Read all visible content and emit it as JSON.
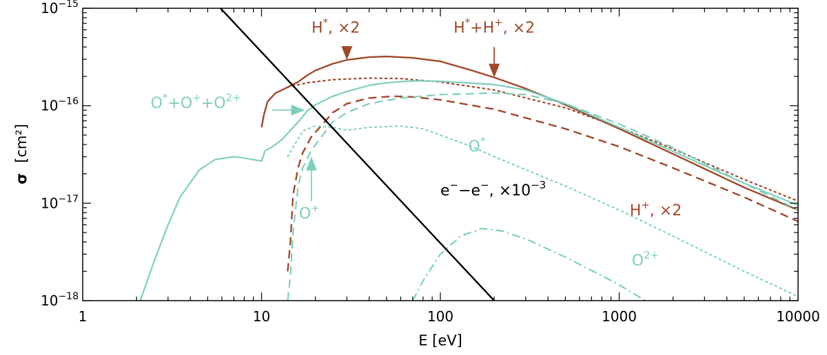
{
  "chart_data": {
    "type": "line",
    "xlabel": "E [eV]",
    "ylabel_symbol": "σ",
    "ylabel_unit": "[cm²]",
    "x_scale": "log",
    "y_scale": "log",
    "xlim": [
      1,
      10000
    ],
    "ylim": [
      1e-18,
      1e-15
    ],
    "x_ticks": [
      {
        "value": 1,
        "label": "1"
      },
      {
        "value": 10,
        "label": "10"
      },
      {
        "value": 100,
        "label": "100"
      },
      {
        "value": 1000,
        "label": "1000"
      },
      {
        "value": 10000,
        "label": "10000"
      }
    ],
    "y_ticks": [
      {
        "value": 1e-15,
        "base": "10",
        "exp": "−15"
      },
      {
        "value": 1e-16,
        "base": "10",
        "exp": "−16"
      },
      {
        "value": 1e-17,
        "base": "10",
        "exp": "−17"
      },
      {
        "value": 1e-18,
        "base": "10",
        "exp": "−18"
      }
    ],
    "colors": {
      "h": "#a0482a",
      "o": "#7dcfbc",
      "e": "#000000"
    },
    "series": [
      {
        "key": "h_total",
        "color": "h",
        "dash": "solid",
        "width": 2.4,
        "points": [
          [
            10,
            6e-17
          ],
          [
            10.3,
            8e-17
          ],
          [
            10.8,
            1.1e-16
          ],
          [
            11.5,
            1.25e-16
          ],
          [
            12,
            1.35e-16
          ],
          [
            13,
            1.45e-16
          ],
          [
            14,
            1.55e-16
          ],
          [
            16,
            1.75e-16
          ],
          [
            18,
            2.05e-16
          ],
          [
            20,
            2.3e-16
          ],
          [
            25,
            2.7e-16
          ],
          [
            30,
            2.95e-16
          ],
          [
            40,
            3.15e-16
          ],
          [
            50,
            3.2e-16
          ],
          [
            70,
            3.1e-16
          ],
          [
            100,
            2.85e-16
          ],
          [
            150,
            2.3e-16
          ],
          [
            200,
            1.95e-16
          ],
          [
            300,
            1.5e-16
          ],
          [
            500,
            1.02e-16
          ],
          [
            1000,
            5.8e-17
          ],
          [
            2000,
            3.2e-17
          ],
          [
            5000,
            1.45e-17
          ],
          [
            10000,
            8.5e-18
          ]
        ]
      },
      {
        "key": "h_star",
        "color": "h",
        "dash": "dot",
        "width": 2.2,
        "points": [
          [
            14,
            1.55e-16
          ],
          [
            18,
            1.72e-16
          ],
          [
            25,
            1.85e-16
          ],
          [
            40,
            1.92e-16
          ],
          [
            60,
            1.9e-16
          ],
          [
            100,
            1.75e-16
          ],
          [
            200,
            1.45e-16
          ],
          [
            500,
            9.5e-17
          ],
          [
            1000,
            6e-17
          ],
          [
            2000,
            3.6e-17
          ],
          [
            5000,
            1.75e-17
          ],
          [
            10000,
            1.05e-17
          ]
        ]
      },
      {
        "key": "h_plus",
        "color": "h",
        "dash": "dash",
        "width": 2.4,
        "points": [
          [
            14,
            2e-18
          ],
          [
            14.5,
            4e-18
          ],
          [
            15,
            1.2e-17
          ],
          [
            16,
            2.3e-17
          ],
          [
            17,
            3.3e-17
          ],
          [
            19,
            4.8e-17
          ],
          [
            22,
            6.5e-17
          ],
          [
            25,
            8.5e-17
          ],
          [
            30,
            1.05e-16
          ],
          [
            40,
            1.2e-16
          ],
          [
            55,
            1.25e-16
          ],
          [
            70,
            1.23e-16
          ],
          [
            100,
            1.15e-16
          ],
          [
            200,
            9.2e-17
          ],
          [
            500,
            5.8e-17
          ],
          [
            1000,
            3.8e-17
          ],
          [
            2000,
            2.3e-17
          ],
          [
            5000,
            1.15e-17
          ],
          [
            10000,
            6.5e-18
          ]
        ]
      },
      {
        "key": "o_total",
        "color": "o",
        "dash": "solid",
        "width": 2.2,
        "points": [
          [
            2.1,
            1e-18
          ],
          [
            2.5,
            2.5e-18
          ],
          [
            3,
            6e-18
          ],
          [
            3.5,
            1.15e-17
          ],
          [
            4.5,
            2.2e-17
          ],
          [
            5.5,
            2.8e-17
          ],
          [
            7,
            3e-17
          ],
          [
            8,
            2.9e-17
          ],
          [
            9.5,
            2.75e-17
          ],
          [
            10,
            2.7e-17
          ],
          [
            10.5,
            3.5e-17
          ],
          [
            11,
            3.6e-17
          ],
          [
            12,
            4e-17
          ],
          [
            13,
            4.5e-17
          ],
          [
            14,
            5.2e-17
          ],
          [
            16,
            6.8e-17
          ],
          [
            18,
            8.8e-17
          ],
          [
            20,
            1.02e-16
          ],
          [
            25,
            1.25e-16
          ],
          [
            30,
            1.4e-16
          ],
          [
            40,
            1.62e-16
          ],
          [
            50,
            1.72e-16
          ],
          [
            70,
            1.8e-16
          ],
          [
            100,
            1.78e-16
          ],
          [
            200,
            1.65e-16
          ],
          [
            300,
            1.45e-16
          ],
          [
            500,
            1.05e-16
          ],
          [
            1000,
            6e-17
          ],
          [
            2000,
            3.4e-17
          ],
          [
            5000,
            1.6e-17
          ],
          [
            10000,
            9.5e-18
          ]
        ]
      },
      {
        "key": "o_plus",
        "color": "o",
        "dash": "dash",
        "width": 2.2,
        "points": [
          [
            14,
            1e-18
          ],
          [
            14.5,
            1.8e-18
          ],
          [
            15,
            5e-18
          ],
          [
            16,
            1.5e-17
          ],
          [
            17,
            2.3e-17
          ],
          [
            19,
            3.5e-17
          ],
          [
            22,
            5e-17
          ],
          [
            25,
            6.8e-17
          ],
          [
            30,
            8.5e-17
          ],
          [
            40,
            1.05e-16
          ],
          [
            60,
            1.2e-16
          ],
          [
            100,
            1.3e-16
          ],
          [
            200,
            1.35e-16
          ],
          [
            300,
            1.3e-16
          ],
          [
            500,
            1.05e-16
          ],
          [
            1000,
            6.5e-17
          ],
          [
            2000,
            3.7e-17
          ],
          [
            5000,
            1.6e-17
          ],
          [
            10000,
            8.5e-18
          ]
        ]
      },
      {
        "key": "o_star",
        "color": "o",
        "dash": "dot",
        "width": 2,
        "points": [
          [
            14,
            3e-17
          ],
          [
            17,
            5.5e-17
          ],
          [
            20,
            6.2e-17
          ],
          [
            25,
            6e-17
          ],
          [
            30,
            5.6e-17
          ],
          [
            40,
            6e-17
          ],
          [
            60,
            6.2e-17
          ],
          [
            80,
            5.8e-17
          ],
          [
            100,
            5e-17
          ],
          [
            150,
            3.8e-17
          ],
          [
            200,
            3e-17
          ],
          [
            500,
            1.5e-17
          ],
          [
            1000,
            8.5e-18
          ],
          [
            2000,
            4.6e-18
          ],
          [
            5000,
            2e-18
          ],
          [
            10000,
            1.1e-18
          ]
        ]
      },
      {
        "key": "o_2plus",
        "color": "o",
        "dash": "dashdot",
        "width": 2.2,
        "points": [
          [
            70,
            1e-18
          ],
          [
            80,
            1.6e-18
          ],
          [
            100,
            3e-18
          ],
          [
            130,
            4.6e-18
          ],
          [
            170,
            5.5e-18
          ],
          [
            220,
            5.2e-18
          ],
          [
            300,
            4.3e-18
          ],
          [
            500,
            2.8e-18
          ],
          [
            800,
            1.8e-18
          ],
          [
            1000,
            1.45e-18
          ],
          [
            1400,
            1e-18
          ]
        ]
      },
      {
        "key": "e_e",
        "color": "e",
        "dash": "solid",
        "width": 2.4,
        "points": [
          [
            5.9,
            1e-15
          ],
          [
            200,
            1e-18
          ]
        ]
      }
    ],
    "annotations": [
      {
        "key": "h_star_label",
        "color": "h",
        "kind": "sup",
        "parts": [
          [
            "H",
            "*"
          ],
          [
            "",
            ", ×2"
          ]
        ],
        "at": [
          26,
          5.6e-16
        ],
        "anchor": "middle"
      },
      {
        "key": "h_total_label",
        "color": "h",
        "kind": "sup",
        "parts": [
          [
            "H",
            "*"
          ],
          [
            "",
            "+"
          ],
          [
            "H",
            "+"
          ],
          [
            "",
            ", ×2"
          ]
        ],
        "at": [
          200,
          5.6e-16
        ],
        "anchor": "middle"
      },
      {
        "key": "o_total_label",
        "color": "o",
        "kind": "sup",
        "parts": [
          [
            "O",
            "*"
          ],
          [
            "",
            "+"
          ],
          [
            "O",
            "+"
          ],
          [
            "",
            "+"
          ],
          [
            "O",
            "2+"
          ]
        ],
        "at": [
          2.4,
          9.5e-17
        ],
        "anchor": "start"
      },
      {
        "key": "o_star_label",
        "color": "o",
        "kind": "sup",
        "parts": [
          [
            "O",
            "*"
          ]
        ],
        "at": [
          160,
          3.4e-17
        ],
        "anchor": "middle"
      },
      {
        "key": "o_plus_label",
        "color": "o",
        "kind": "sup",
        "parts": [
          [
            "O",
            "+"
          ]
        ],
        "at": [
          18.5,
          7e-18
        ],
        "anchor": "middle"
      },
      {
        "key": "h_plus_label",
        "color": "h",
        "kind": "sup",
        "parts": [
          [
            "H",
            "+"
          ],
          [
            "",
            ", ×2"
          ]
        ],
        "at": [
          1600,
          7.5e-18
        ],
        "anchor": "middle"
      },
      {
        "key": "o_2plus_label",
        "color": "o",
        "kind": "sup",
        "parts": [
          [
            "O",
            "2+"
          ]
        ],
        "at": [
          1400,
          2.3e-18
        ],
        "anchor": "middle"
      },
      {
        "key": "ee_label",
        "color": "e",
        "kind": "sup",
        "parts": [
          [
            "e",
            "−"
          ],
          [
            "−e",
            "−"
          ],
          [
            ",  ×10",
            "−3"
          ]
        ],
        "at": [
          100,
          1.2e-17
        ],
        "anchor": "start"
      }
    ],
    "arrows": [
      {
        "key": "h_star_arrow",
        "color": "h",
        "from": [
          30,
          4e-16
        ],
        "to": [
          30,
          2.95e-16
        ]
      },
      {
        "key": "h_total_arrow",
        "color": "h",
        "from": [
          200,
          4e-16
        ],
        "to": [
          200,
          1.95e-16
        ]
      },
      {
        "key": "o_total_arrow",
        "color": "o",
        "from": [
          11.5,
          9e-17
        ],
        "to": [
          17.5,
          9e-17
        ]
      },
      {
        "key": "o_plus_arrow",
        "color": "o",
        "from": [
          19,
          1.05e-17
        ],
        "to": [
          19,
          3e-17
        ]
      }
    ]
  }
}
